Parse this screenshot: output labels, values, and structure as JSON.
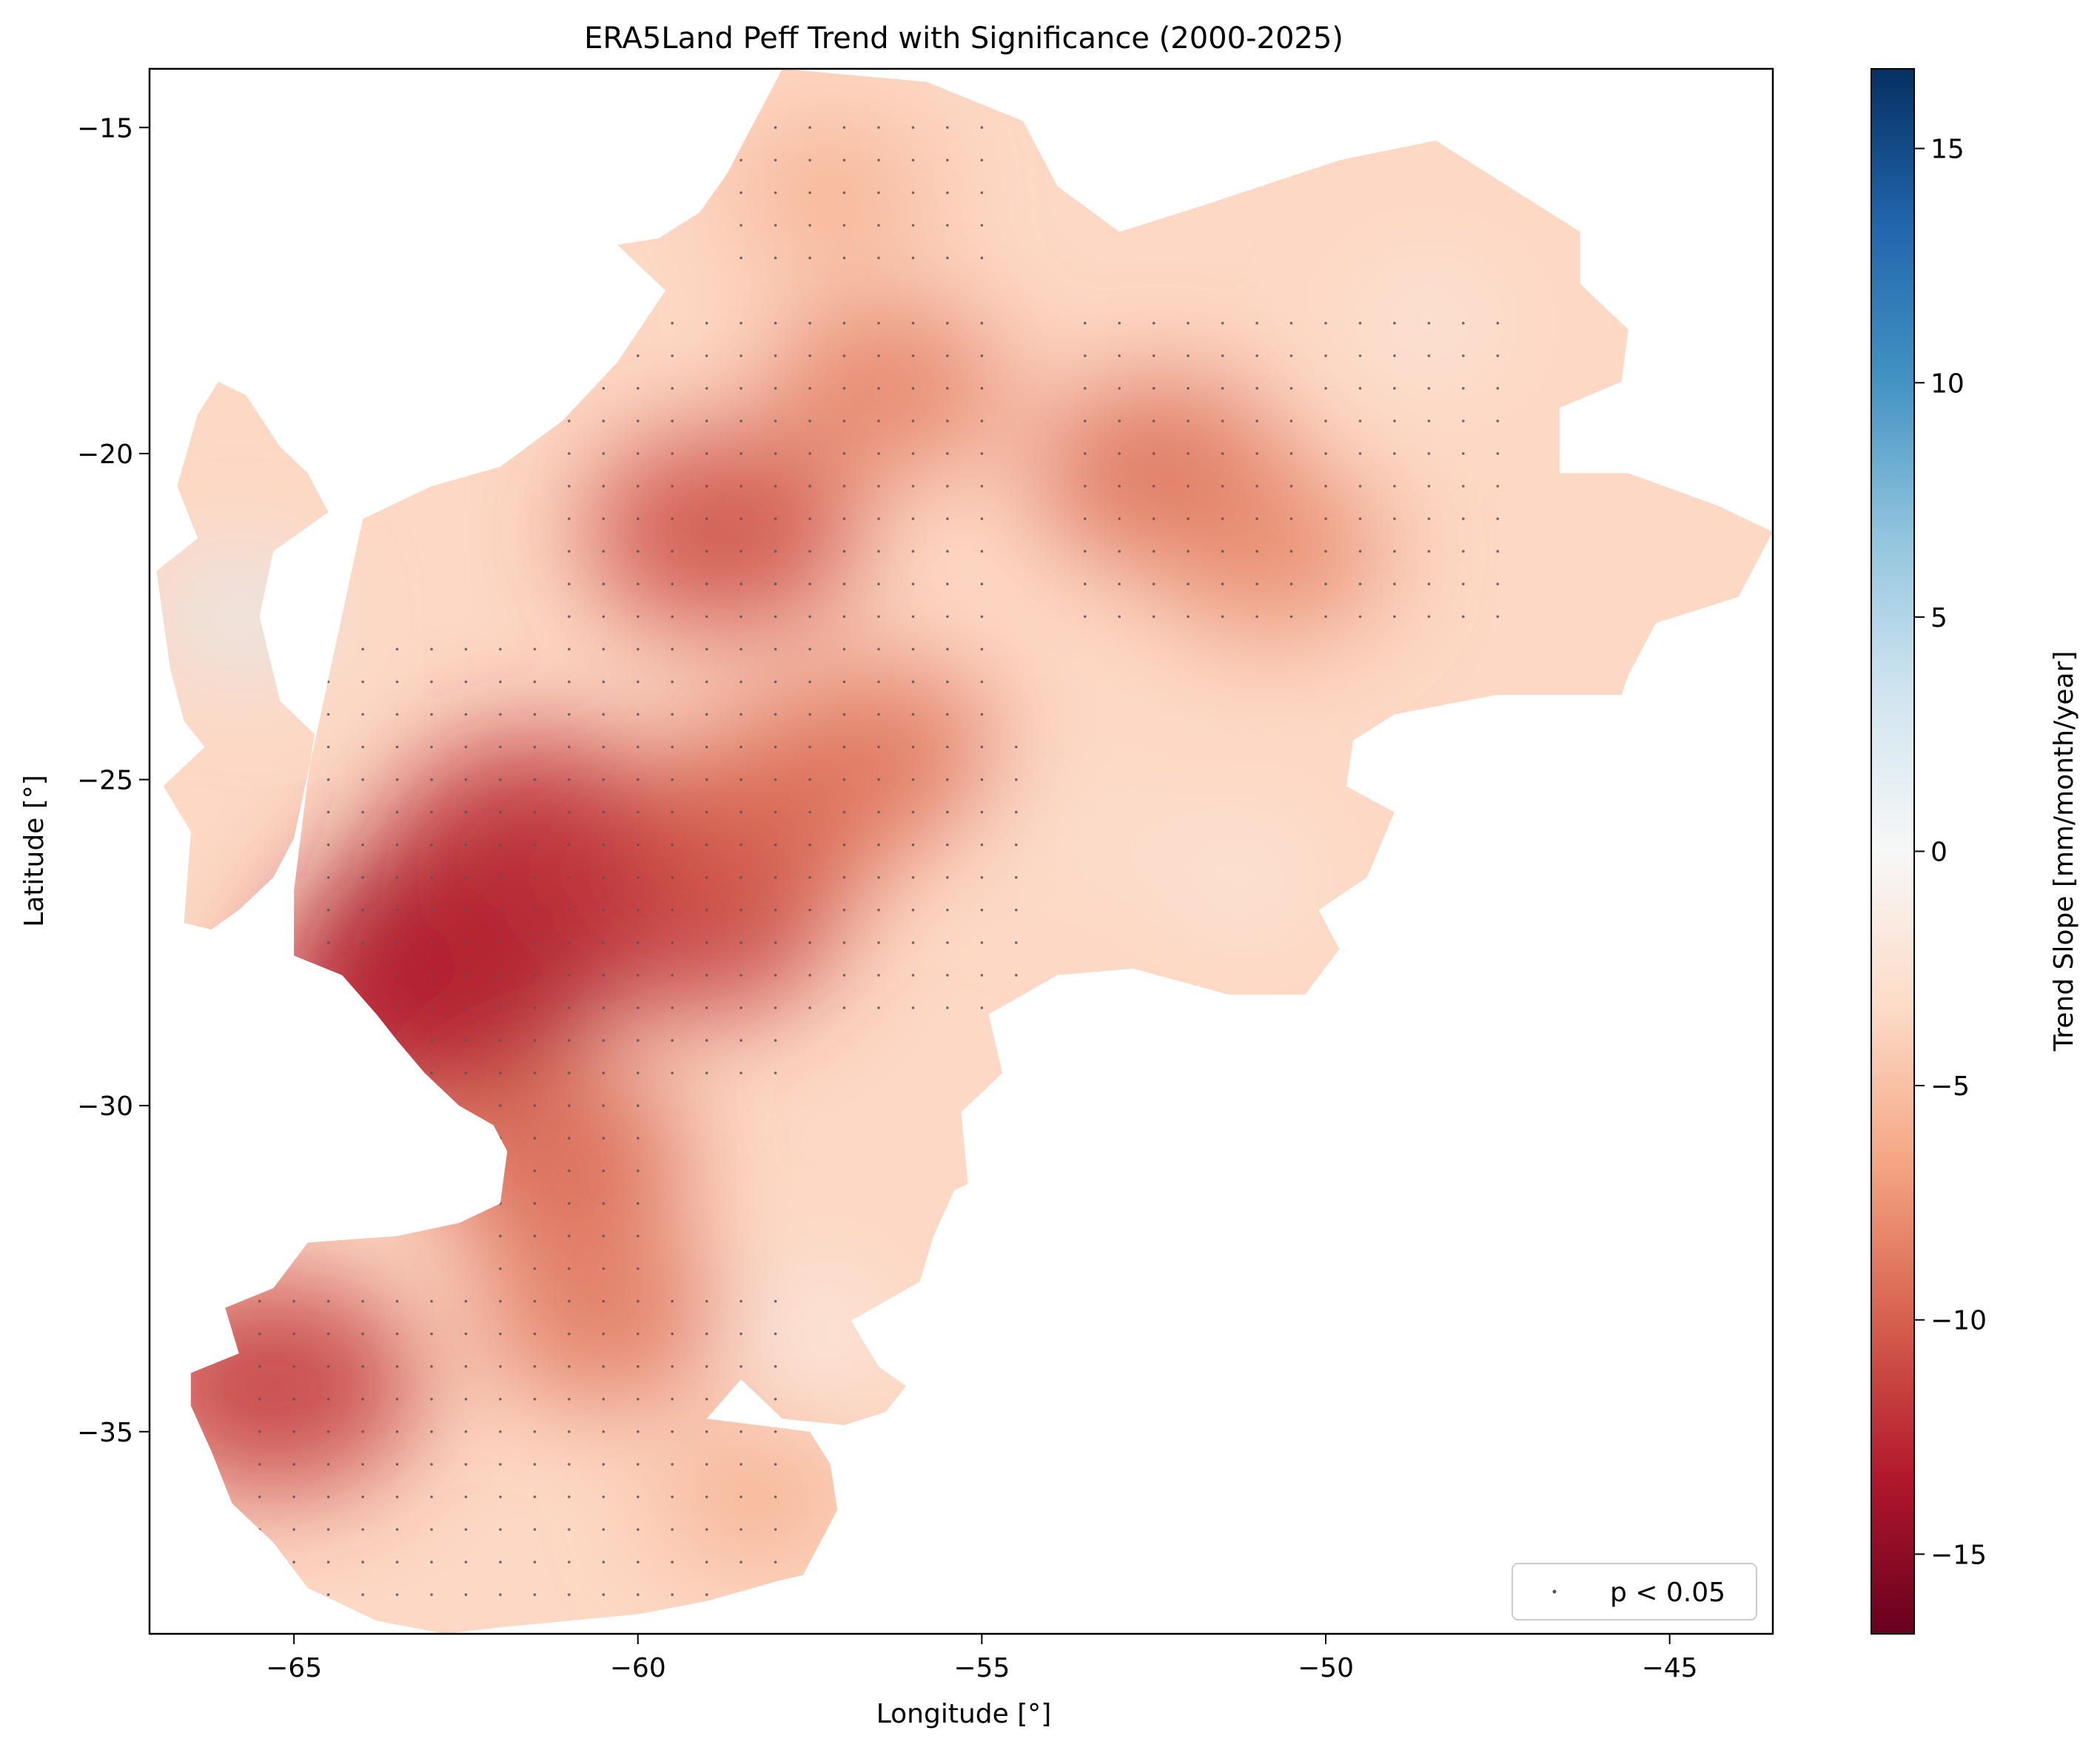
{
  "chart_data": {
    "type": "heatmap",
    "title": "ERA5Land Peff Trend with Significance (2000-2025)",
    "xlabel": "Longitude [°]",
    "ylabel": "Latitude [°]",
    "xlim": [
      -67.1,
      -43.5
    ],
    "ylim": [
      -38.1,
      -14.1
    ],
    "x_ticks": [
      -65,
      -60,
      -55,
      -50,
      -45
    ],
    "x_tick_labels": [
      "−65",
      "−60",
      "−55",
      "−50",
      "−45"
    ],
    "y_ticks": [
      -15,
      -20,
      -25,
      -30,
      -35
    ],
    "y_tick_labels": [
      "−15",
      "−20",
      "−25",
      "−30",
      "−35"
    ],
    "grid": false,
    "colorbar": {
      "label": "Trend Slope [mm/month/year]",
      "colormap": "RdBu",
      "range": [
        -16.7,
        16.7
      ],
      "ticks": [
        15,
        10,
        5,
        0,
        -5,
        -10,
        -15
      ],
      "tick_labels": [
        "15",
        "10",
        "5",
        "0",
        "−5",
        "−10",
        "−15"
      ],
      "colors_top_to_bottom": [
        "#053061",
        "#2166ac",
        "#4393c3",
        "#92c5de",
        "#d1e5f0",
        "#f7f7f7",
        "#fddbc7",
        "#f4a582",
        "#d6604d",
        "#b2182b",
        "#67001f"
      ]
    },
    "legend": {
      "placement": "lower right",
      "entries": [
        {
          "label": "p < 0.05",
          "marker": "dot",
          "color": "#555555"
        }
      ]
    },
    "domain_outline_lonlat": [
      [
        -57.9,
        -14.1
      ],
      [
        -55.8,
        -14.3
      ],
      [
        -54.4,
        -14.9
      ],
      [
        -53.9,
        -15.9
      ],
      [
        -53.0,
        -16.6
      ],
      [
        -51.8,
        -16.2
      ],
      [
        -49.8,
        -15.5
      ],
      [
        -48.4,
        -15.2
      ],
      [
        -46.3,
        -16.6
      ],
      [
        -46.3,
        -17.4
      ],
      [
        -45.6,
        -18.1
      ],
      [
        -45.7,
        -18.9
      ],
      [
        -46.6,
        -19.3
      ],
      [
        -46.6,
        -20.3
      ],
      [
        -45.6,
        -20.3
      ],
      [
        -44.3,
        -20.8
      ],
      [
        -43.5,
        -21.2
      ],
      [
        -44.0,
        -22.2
      ],
      [
        -45.2,
        -22.6
      ],
      [
        -45.6,
        -23.4
      ],
      [
        -45.7,
        -23.7
      ],
      [
        -47.5,
        -23.7
      ],
      [
        -49.0,
        -24.0
      ],
      [
        -49.6,
        -24.4
      ],
      [
        -49.7,
        -25.1
      ],
      [
        -49.0,
        -25.5
      ],
      [
        -49.4,
        -26.5
      ],
      [
        -50.1,
        -27.0
      ],
      [
        -49.8,
        -27.6
      ],
      [
        -50.3,
        -28.3
      ],
      [
        -51.4,
        -28.3
      ],
      [
        -52.8,
        -27.9
      ],
      [
        -53.9,
        -28.0
      ],
      [
        -54.9,
        -28.6
      ],
      [
        -54.7,
        -29.5
      ],
      [
        -55.3,
        -30.1
      ],
      [
        -55.2,
        -31.2
      ],
      [
        -55.4,
        -31.3
      ],
      [
        -55.7,
        -32.0
      ],
      [
        -55.9,
        -32.7
      ],
      [
        -56.9,
        -33.3
      ],
      [
        -56.5,
        -34.0
      ],
      [
        -56.1,
        -34.3
      ],
      [
        -56.4,
        -34.7
      ],
      [
        -57.0,
        -34.9
      ],
      [
        -57.9,
        -34.8
      ],
      [
        -58.4,
        -34.3
      ],
      [
        -58.5,
        -34.2
      ],
      [
        -59.0,
        -34.8
      ],
      [
        -57.5,
        -35.0
      ],
      [
        -57.2,
        -35.5
      ],
      [
        -57.1,
        -36.2
      ],
      [
        -57.6,
        -37.2
      ],
      [
        -58.0,
        -37.3
      ],
      [
        -59.0,
        -37.6
      ],
      [
        -60.0,
        -37.8
      ],
      [
        -61.0,
        -37.9
      ],
      [
        -62.0,
        -38.0
      ],
      [
        -62.8,
        -38.1
      ],
      [
        -63.8,
        -37.9
      ],
      [
        -64.8,
        -37.4
      ],
      [
        -65.3,
        -36.7
      ],
      [
        -65.9,
        -36.1
      ],
      [
        -66.2,
        -35.3
      ],
      [
        -66.5,
        -34.6
      ],
      [
        -66.5,
        -34.1
      ],
      [
        -65.8,
        -33.8
      ],
      [
        -66.0,
        -33.1
      ],
      [
        -65.3,
        -32.8
      ],
      [
        -64.8,
        -32.1
      ],
      [
        -63.5,
        -32.0
      ],
      [
        -62.6,
        -31.8
      ],
      [
        -62.0,
        -31.5
      ],
      [
        -61.9,
        -30.7
      ],
      [
        -62.1,
        -30.3
      ],
      [
        -62.6,
        -30.0
      ],
      [
        -63.1,
        -29.5
      ],
      [
        -63.5,
        -29.0
      ],
      [
        -63.8,
        -28.6
      ],
      [
        -64.3,
        -28.0
      ],
      [
        -65.0,
        -27.7
      ],
      [
        -65.0,
        -27.0
      ],
      [
        -65.0,
        -26.7
      ],
      [
        -64.8,
        -25.0
      ],
      [
        -64.7,
        -24.3
      ],
      [
        -65.2,
        -23.8
      ],
      [
        -65.5,
        -22.5
      ],
      [
        -65.3,
        -21.5
      ],
      [
        -64.5,
        -20.9
      ],
      [
        -64.8,
        -20.3
      ],
      [
        -65.2,
        -19.9
      ],
      [
        -65.7,
        -19.1
      ],
      [
        -66.1,
        -18.9
      ],
      [
        -66.4,
        -19.4
      ],
      [
        -66.7,
        -20.5
      ],
      [
        -66.4,
        -21.3
      ],
      [
        -67.0,
        -21.8
      ],
      [
        -66.8,
        -23.3
      ],
      [
        -66.6,
        -24.1
      ],
      [
        -66.3,
        -24.5
      ],
      [
        -66.9,
        -25.1
      ],
      [
        -66.5,
        -25.8
      ],
      [
        -66.6,
        -27.2
      ],
      [
        -66.2,
        -27.3
      ],
      [
        -65.8,
        -27.0
      ],
      [
        -65.3,
        -26.5
      ],
      [
        -65.0,
        -25.9
      ],
      [
        -64.0,
        -21.0
      ],
      [
        -63.0,
        -20.5
      ],
      [
        -62.0,
        -20.2
      ],
      [
        -61.1,
        -19.5
      ],
      [
        -60.3,
        -18.6
      ],
      [
        -59.6,
        -17.5
      ],
      [
        -60.3,
        -16.8
      ],
      [
        -59.7,
        -16.7
      ],
      [
        -59.1,
        -16.3
      ],
      [
        -58.7,
        -15.7
      ],
      [
        -58.4,
        -15.1
      ],
      [
        -57.9,
        -14.1
      ]
    ],
    "trend_hotspots": [
      {
        "lon": -62.5,
        "lat": -27.6,
        "slope": -15.0
      },
      {
        "lon": -61.5,
        "lat": -26.0,
        "slope": -12.5
      },
      {
        "lon": -63.3,
        "lat": -28.5,
        "slope": -13.0
      },
      {
        "lon": -59.2,
        "lat": -27.0,
        "slope": -12.0
      },
      {
        "lon": -58.8,
        "lat": -21.2,
        "slope": -11.0
      },
      {
        "lon": -65.3,
        "lat": -34.3,
        "slope": -12.0
      },
      {
        "lon": -61.2,
        "lat": -30.8,
        "slope": -10.0
      },
      {
        "lon": -52.4,
        "lat": -20.3,
        "slope": -9.5
      },
      {
        "lon": -58.0,
        "lat": -25.5,
        "slope": -10.0
      },
      {
        "lon": -50.8,
        "lat": -21.5,
        "slope": -8.0
      },
      {
        "lon": -56.5,
        "lat": -24.6,
        "slope": -9.0
      },
      {
        "lon": -56.4,
        "lat": -19.0,
        "slope": -8.5
      },
      {
        "lon": -60.5,
        "lat": -33.2,
        "slope": -9.0
      },
      {
        "lon": -58.3,
        "lat": -36.0,
        "slope": -6.0
      },
      {
        "lon": -57.2,
        "lat": -16.0,
        "slope": -6.0
      },
      {
        "lon": -53.5,
        "lat": -25.8,
        "slope": -3.0
      },
      {
        "lon": -48.5,
        "lat": -18.0,
        "slope": -2.0
      },
      {
        "lon": -65.8,
        "lat": -22.5,
        "slope": 2.0
      },
      {
        "lon": -57.5,
        "lat": -33.5,
        "slope": -1.0
      },
      {
        "lon": -51.2,
        "lat": -26.5,
        "slope": -2.0
      }
    ],
    "significance_regions": [
      {
        "lon_range": [
          -64.5,
          -58.0
        ],
        "lat_range": [
          -29.5,
          -23.0
        ]
      },
      {
        "lon_range": [
          -62.2,
          -59.7
        ],
        "lat_range": [
          -33.0,
          -29.5
        ]
      },
      {
        "lon_range": [
          -65.6,
          -57.8
        ],
        "lat_range": [
          -37.5,
          -33.0
        ]
      },
      {
        "lon_range": [
          -61.0,
          -55.0
        ],
        "lat_range": [
          -24.5,
          -18.0
        ]
      },
      {
        "lon_range": [
          -53.7,
          -47.4
        ],
        "lat_range": [
          -22.5,
          -18.0
        ]
      },
      {
        "lon_range": [
          -58.0,
          -54.3
        ],
        "lat_range": [
          -28.5,
          -24.5
        ]
      },
      {
        "lon_range": [
          -58.5,
          -55.0
        ],
        "lat_range": [
          -17.0,
          -14.6
        ]
      }
    ]
  }
}
